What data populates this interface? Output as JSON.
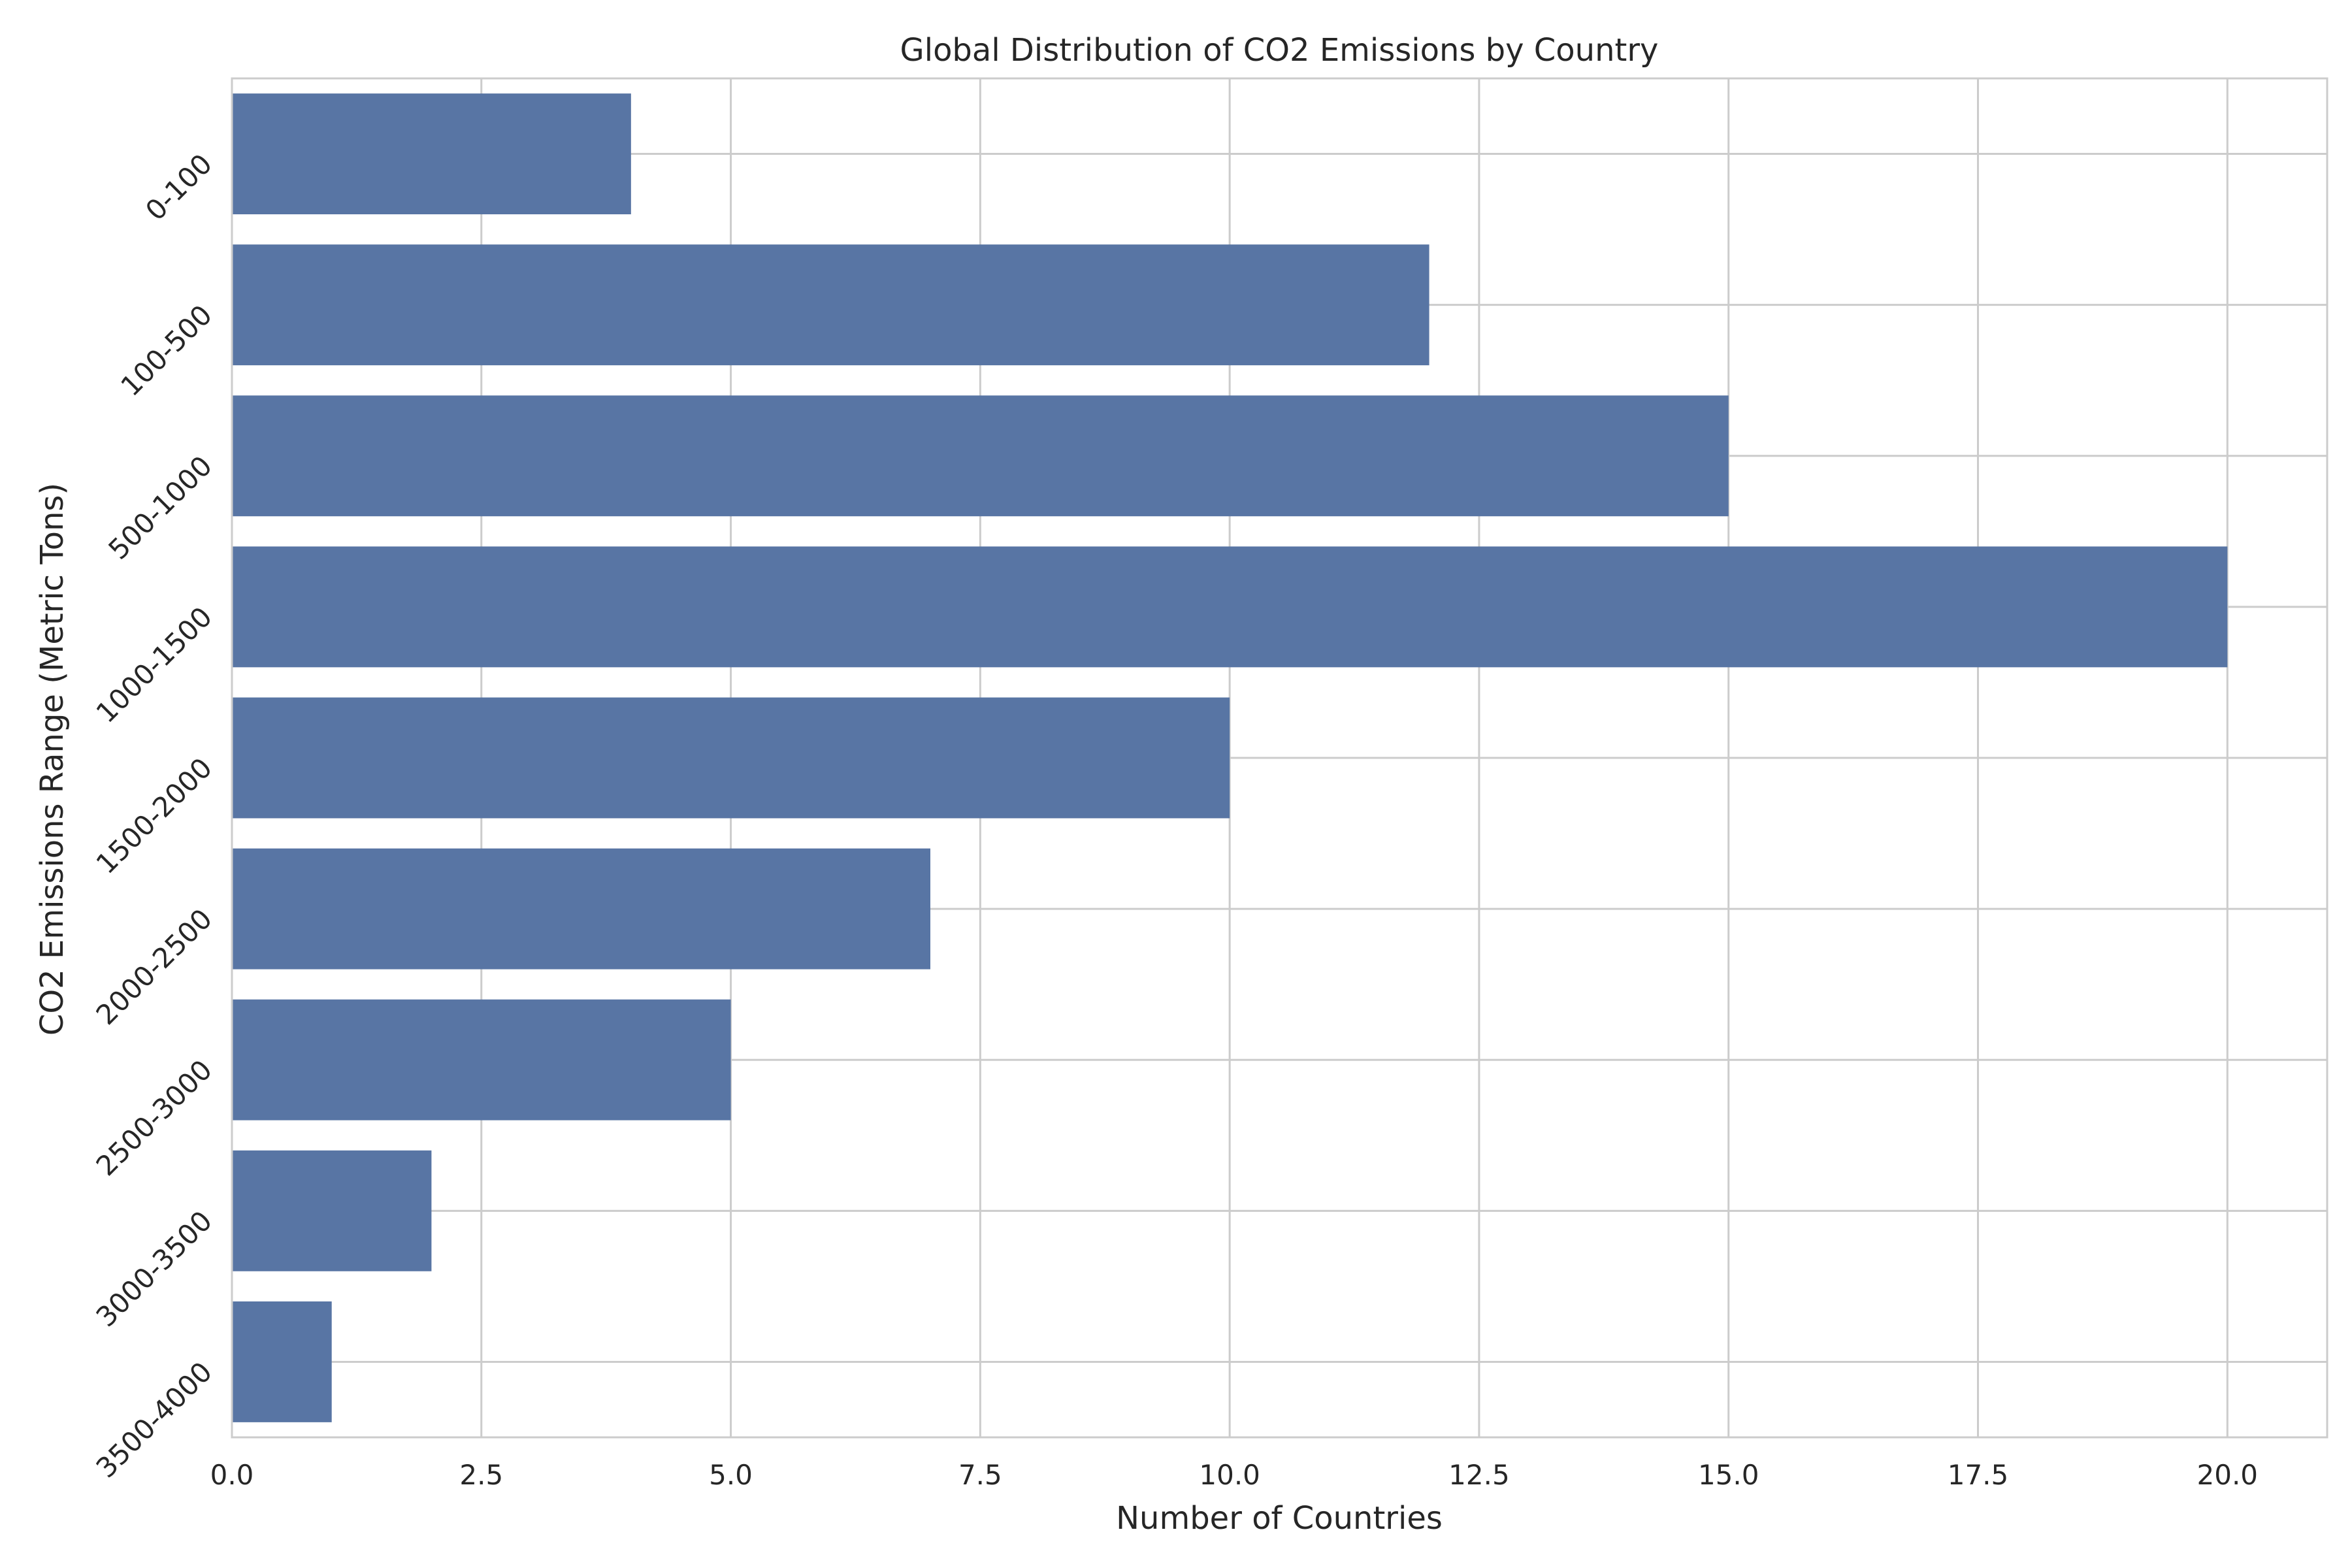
{
  "chart_data": {
    "type": "bar",
    "orientation": "horizontal",
    "title": "Global Distribution of CO2 Emissions by Country",
    "xlabel": "Number of Countries",
    "ylabel": "CO2 Emissions Range (Metric Tons)",
    "categories": [
      "0-100",
      "100-500",
      "500-1000",
      "1000-1500",
      "1500-2000",
      "2000-2500",
      "2500-3000",
      "3000-3500",
      "3500-4000"
    ],
    "values": [
      4,
      12,
      15,
      20,
      10,
      7,
      5,
      2,
      1
    ],
    "xlim": [
      0,
      21
    ],
    "xticks": [
      0.0,
      2.5,
      5.0,
      7.5,
      10.0,
      12.5,
      15.0,
      17.5,
      20.0
    ],
    "xtick_labels": [
      "0.0",
      "2.5",
      "5.0",
      "7.5",
      "10.0",
      "12.5",
      "15.0",
      "17.5",
      "20.0"
    ],
    "grid": true,
    "bar_color": "#5875a4",
    "grid_color": "#cccccc",
    "background_color": "#ffffff"
  }
}
